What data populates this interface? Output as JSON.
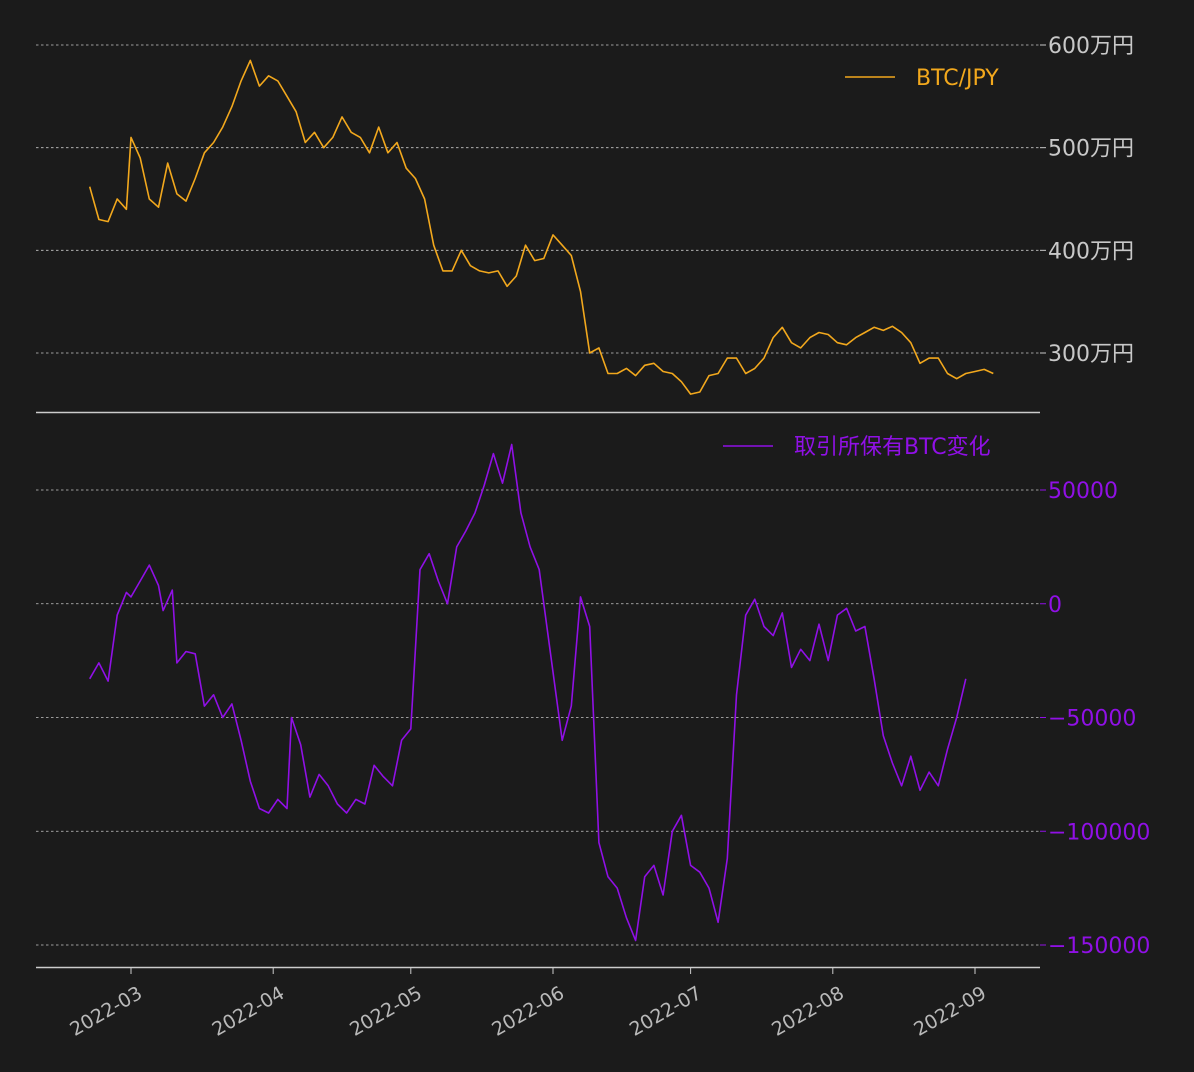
{
  "chart_data": [
    {
      "type": "line",
      "title": "",
      "ylim": [
        2450000,
        6000000
      ],
      "yticks": [
        {
          "value": 3000000,
          "label": "300万円"
        },
        {
          "value": 4000000,
          "label": "400万円"
        },
        {
          "value": 5000000,
          "label": "500万円"
        },
        {
          "value": 6000000,
          "label": "600万円"
        }
      ],
      "grid": true,
      "legend_position": "top-right",
      "series": [
        {
          "name": "BTC/JPY",
          "color": "#f2a81d",
          "points": [
            [
              "2022-02-20",
              4620000
            ],
            [
              "2022-02-22",
              4300000
            ],
            [
              "2022-02-24",
              4280000
            ],
            [
              "2022-02-26",
              4500000
            ],
            [
              "2022-02-28",
              4400000
            ],
            [
              "2022-03-01",
              5100000
            ],
            [
              "2022-03-03",
              4900000
            ],
            [
              "2022-03-05",
              4500000
            ],
            [
              "2022-03-07",
              4420000
            ],
            [
              "2022-03-09",
              4850000
            ],
            [
              "2022-03-11",
              4550000
            ],
            [
              "2022-03-13",
              4480000
            ],
            [
              "2022-03-15",
              4700000
            ],
            [
              "2022-03-17",
              4950000
            ],
            [
              "2022-03-19",
              5050000
            ],
            [
              "2022-03-21",
              5200000
            ],
            [
              "2022-03-23",
              5400000
            ],
            [
              "2022-03-25",
              5650000
            ],
            [
              "2022-03-27",
              5850000
            ],
            [
              "2022-03-29",
              5600000
            ],
            [
              "2022-03-31",
              5700000
            ],
            [
              "2022-04-02",
              5650000
            ],
            [
              "2022-04-04",
              5500000
            ],
            [
              "2022-04-06",
              5350000
            ],
            [
              "2022-04-08",
              5050000
            ],
            [
              "2022-04-10",
              5150000
            ],
            [
              "2022-04-12",
              5000000
            ],
            [
              "2022-04-14",
              5100000
            ],
            [
              "2022-04-16",
              5300000
            ],
            [
              "2022-04-18",
              5150000
            ],
            [
              "2022-04-20",
              5100000
            ],
            [
              "2022-04-22",
              4950000
            ],
            [
              "2022-04-24",
              5200000
            ],
            [
              "2022-04-26",
              4950000
            ],
            [
              "2022-04-28",
              5050000
            ],
            [
              "2022-04-30",
              4800000
            ],
            [
              "2022-05-02",
              4700000
            ],
            [
              "2022-05-04",
              4500000
            ],
            [
              "2022-05-06",
              4050000
            ],
            [
              "2022-05-08",
              3800000
            ],
            [
              "2022-05-10",
              3800000
            ],
            [
              "2022-05-12",
              4000000
            ],
            [
              "2022-05-14",
              3850000
            ],
            [
              "2022-05-16",
              3800000
            ],
            [
              "2022-05-18",
              3780000
            ],
            [
              "2022-05-20",
              3800000
            ],
            [
              "2022-05-22",
              3650000
            ],
            [
              "2022-05-24",
              3750000
            ],
            [
              "2022-05-26",
              4050000
            ],
            [
              "2022-05-28",
              3900000
            ],
            [
              "2022-05-30",
              3920000
            ],
            [
              "2022-06-01",
              4150000
            ],
            [
              "2022-06-03",
              4050000
            ],
            [
              "2022-06-05",
              3950000
            ],
            [
              "2022-06-07",
              3600000
            ],
            [
              "2022-06-09",
              3000000
            ],
            [
              "2022-06-11",
              3050000
            ],
            [
              "2022-06-13",
              2800000
            ],
            [
              "2022-06-15",
              2800000
            ],
            [
              "2022-06-17",
              2850000
            ],
            [
              "2022-06-19",
              2780000
            ],
            [
              "2022-06-21",
              2880000
            ],
            [
              "2022-06-23",
              2900000
            ],
            [
              "2022-06-25",
              2820000
            ],
            [
              "2022-06-27",
              2800000
            ],
            [
              "2022-06-29",
              2720000
            ],
            [
              "2022-07-01",
              2600000
            ],
            [
              "2022-07-03",
              2620000
            ],
            [
              "2022-07-05",
              2780000
            ],
            [
              "2022-07-07",
              2800000
            ],
            [
              "2022-07-09",
              2950000
            ],
            [
              "2022-07-11",
              2950000
            ],
            [
              "2022-07-13",
              2800000
            ],
            [
              "2022-07-15",
              2850000
            ],
            [
              "2022-07-17",
              2950000
            ],
            [
              "2022-07-19",
              3150000
            ],
            [
              "2022-07-21",
              3250000
            ],
            [
              "2022-07-23",
              3100000
            ],
            [
              "2022-07-25",
              3050000
            ],
            [
              "2022-07-27",
              3150000
            ],
            [
              "2022-07-29",
              3200000
            ],
            [
              "2022-07-31",
              3180000
            ],
            [
              "2022-08-02",
              3100000
            ],
            [
              "2022-08-04",
              3080000
            ],
            [
              "2022-08-06",
              3150000
            ],
            [
              "2022-08-08",
              3200000
            ],
            [
              "2022-08-10",
              3250000
            ],
            [
              "2022-08-12",
              3220000
            ],
            [
              "2022-08-14",
              3260000
            ],
            [
              "2022-08-16",
              3200000
            ],
            [
              "2022-08-18",
              3100000
            ],
            [
              "2022-08-20",
              2900000
            ],
            [
              "2022-08-22",
              2950000
            ],
            [
              "2022-08-24",
              2950000
            ],
            [
              "2022-08-26",
              2800000
            ],
            [
              "2022-08-28",
              2750000
            ],
            [
              "2022-08-30",
              2800000
            ],
            [
              "2022-09-01",
              2820000
            ],
            [
              "2022-09-03",
              2840000
            ],
            [
              "2022-09-05",
              2800000
            ]
          ]
        }
      ]
    },
    {
      "type": "line",
      "title": "",
      "ylim": [
        -160000,
        75000
      ],
      "yticks": [
        {
          "value": 50000,
          "label": "50000"
        },
        {
          "value": 0,
          "label": "0"
        },
        {
          "value": -50000,
          "label": "−50000"
        },
        {
          "value": -100000,
          "label": "−100000"
        },
        {
          "value": -150000,
          "label": "−150000"
        }
      ],
      "x_ticks": [
        "2022-03",
        "2022-04",
        "2022-05",
        "2022-06",
        "2022-07",
        "2022-08",
        "2022-09"
      ],
      "grid": true,
      "legend_position": "top-right",
      "series": [
        {
          "name": "取引所保有BTC変化",
          "color": "#9010e6",
          "points": [
            [
              "2022-02-20",
              -33000
            ],
            [
              "2022-02-22",
              -26000
            ],
            [
              "2022-02-24",
              -34000
            ],
            [
              "2022-02-26",
              -5000
            ],
            [
              "2022-02-28",
              5000
            ],
            [
              "2022-03-01",
              3000
            ],
            [
              "2022-03-03",
              10000
            ],
            [
              "2022-03-05",
              17000
            ],
            [
              "2022-03-07",
              8000
            ],
            [
              "2022-03-08",
              -3000
            ],
            [
              "2022-03-10",
              6000
            ],
            [
              "2022-03-11",
              -26000
            ],
            [
              "2022-03-13",
              -21000
            ],
            [
              "2022-03-15",
              -22000
            ],
            [
              "2022-03-17",
              -45000
            ],
            [
              "2022-03-19",
              -40000
            ],
            [
              "2022-03-21",
              -50000
            ],
            [
              "2022-03-23",
              -44000
            ],
            [
              "2022-03-25",
              -60000
            ],
            [
              "2022-03-27",
              -78000
            ],
            [
              "2022-03-29",
              -90000
            ],
            [
              "2022-03-31",
              -92000
            ],
            [
              "2022-04-02",
              -86000
            ],
            [
              "2022-04-04",
              -90000
            ],
            [
              "2022-04-05",
              -50000
            ],
            [
              "2022-04-07",
              -62000
            ],
            [
              "2022-04-09",
              -85000
            ],
            [
              "2022-04-11",
              -75000
            ],
            [
              "2022-04-13",
              -80000
            ],
            [
              "2022-04-15",
              -88000
            ],
            [
              "2022-04-17",
              -92000
            ],
            [
              "2022-04-19",
              -86000
            ],
            [
              "2022-04-21",
              -88000
            ],
            [
              "2022-04-23",
              -71000
            ],
            [
              "2022-04-25",
              -76000
            ],
            [
              "2022-04-27",
              -80000
            ],
            [
              "2022-04-29",
              -60000
            ],
            [
              "2022-05-01",
              -55000
            ],
            [
              "2022-05-03",
              15000
            ],
            [
              "2022-05-05",
              22000
            ],
            [
              "2022-05-07",
              10000
            ],
            [
              "2022-05-09",
              0
            ],
            [
              "2022-05-11",
              25000
            ],
            [
              "2022-05-13",
              32000
            ],
            [
              "2022-05-15",
              40000
            ],
            [
              "2022-05-17",
              52000
            ],
            [
              "2022-05-19",
              66000
            ],
            [
              "2022-05-21",
              53000
            ],
            [
              "2022-05-23",
              70000
            ],
            [
              "2022-05-25",
              40000
            ],
            [
              "2022-05-27",
              25000
            ],
            [
              "2022-05-29",
              15000
            ],
            [
              "2022-06-01",
              -30000
            ],
            [
              "2022-06-03",
              -60000
            ],
            [
              "2022-06-05",
              -45000
            ],
            [
              "2022-06-07",
              3000
            ],
            [
              "2022-06-09",
              -10000
            ],
            [
              "2022-06-11",
              -105000
            ],
            [
              "2022-06-13",
              -120000
            ],
            [
              "2022-06-15",
              -125000
            ],
            [
              "2022-06-17",
              -138000
            ],
            [
              "2022-06-19",
              -148000
            ],
            [
              "2022-06-21",
              -120000
            ],
            [
              "2022-06-23",
              -115000
            ],
            [
              "2022-06-25",
              -128000
            ],
            [
              "2022-06-27",
              -100000
            ],
            [
              "2022-06-29",
              -93000
            ],
            [
              "2022-07-01",
              -115000
            ],
            [
              "2022-07-03",
              -118000
            ],
            [
              "2022-07-05",
              -125000
            ],
            [
              "2022-07-07",
              -140000
            ],
            [
              "2022-07-09",
              -112000
            ],
            [
              "2022-07-11",
              -40000
            ],
            [
              "2022-07-13",
              -5000
            ],
            [
              "2022-07-15",
              2000
            ],
            [
              "2022-07-17",
              -10000
            ],
            [
              "2022-07-19",
              -14000
            ],
            [
              "2022-07-21",
              -4000
            ],
            [
              "2022-07-23",
              -28000
            ],
            [
              "2022-07-25",
              -20000
            ],
            [
              "2022-07-27",
              -25000
            ],
            [
              "2022-07-29",
              -9000
            ],
            [
              "2022-07-31",
              -25000
            ],
            [
              "2022-08-02",
              -5000
            ],
            [
              "2022-08-04",
              -2000
            ],
            [
              "2022-08-06",
              -12000
            ],
            [
              "2022-08-08",
              -10000
            ],
            [
              "2022-08-10",
              -33000
            ],
            [
              "2022-08-12",
              -58000
            ],
            [
              "2022-08-14",
              -70000
            ],
            [
              "2022-08-16",
              -80000
            ],
            [
              "2022-08-18",
              -67000
            ],
            [
              "2022-08-20",
              -82000
            ],
            [
              "2022-08-22",
              -74000
            ],
            [
              "2022-08-24",
              -80000
            ],
            [
              "2022-08-26",
              -64000
            ],
            [
              "2022-08-28",
              -50000
            ],
            [
              "2022-08-30",
              -33000
            ]
          ]
        }
      ]
    }
  ]
}
